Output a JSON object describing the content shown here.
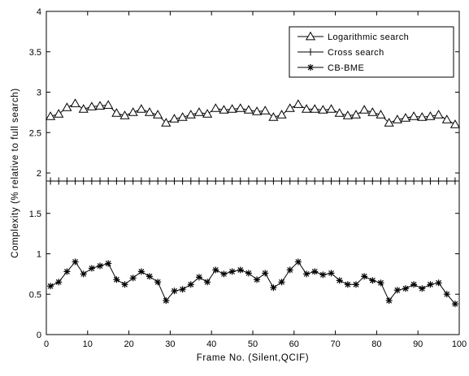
{
  "chart_data": {
    "type": "line",
    "title": "",
    "xlabel": "Frame No. (Silent,QCIF)",
    "ylabel": "Complexity (% relative to full search)",
    "xlim": [
      0,
      100
    ],
    "ylim": [
      0,
      4
    ],
    "xticks": [
      "0",
      "10",
      "20",
      "30",
      "40",
      "50",
      "60",
      "70",
      "80",
      "90",
      "100"
    ],
    "yticks": [
      "0",
      "0.5",
      "1",
      "1.5",
      "2",
      "2.5",
      "3",
      "3.5",
      "4"
    ],
    "grid": false,
    "legend_position": "top-right",
    "x": [
      1,
      3,
      5,
      7,
      9,
      11,
      13,
      15,
      17,
      19,
      21,
      23,
      25,
      27,
      29,
      31,
      33,
      35,
      37,
      39,
      41,
      43,
      45,
      47,
      49,
      51,
      53,
      55,
      57,
      59,
      61,
      63,
      65,
      67,
      69,
      71,
      73,
      75,
      77,
      79,
      81,
      83,
      85,
      87,
      89,
      91,
      93,
      95,
      97,
      99
    ],
    "series": [
      {
        "name": "Logarithmic search",
        "marker": "triangle",
        "values": [
          2.7,
          2.73,
          2.81,
          2.86,
          2.79,
          2.82,
          2.83,
          2.84,
          2.74,
          2.71,
          2.75,
          2.79,
          2.75,
          2.72,
          2.62,
          2.67,
          2.69,
          2.72,
          2.75,
          2.73,
          2.8,
          2.78,
          2.79,
          2.8,
          2.78,
          2.76,
          2.77,
          2.69,
          2.72,
          2.8,
          2.85,
          2.79,
          2.79,
          2.78,
          2.79,
          2.74,
          2.71,
          2.72,
          2.78,
          2.75,
          2.72,
          2.62,
          2.66,
          2.68,
          2.7,
          2.69,
          2.7,
          2.72,
          2.66,
          2.6
        ]
      },
      {
        "name": "Cross search",
        "marker": "plus",
        "values": [
          1.9,
          1.9,
          1.9,
          1.9,
          1.9,
          1.9,
          1.9,
          1.9,
          1.9,
          1.9,
          1.9,
          1.9,
          1.9,
          1.9,
          1.9,
          1.9,
          1.9,
          1.9,
          1.9,
          1.9,
          1.9,
          1.9,
          1.9,
          1.9,
          1.9,
          1.9,
          1.9,
          1.9,
          1.9,
          1.9,
          1.9,
          1.9,
          1.9,
          1.9,
          1.9,
          1.9,
          1.9,
          1.9,
          1.9,
          1.9,
          1.9,
          1.9,
          1.9,
          1.9,
          1.9,
          1.9,
          1.9,
          1.9,
          1.9,
          1.9
        ]
      },
      {
        "name": "CB-BME",
        "marker": "star",
        "values": [
          0.6,
          0.65,
          0.78,
          0.9,
          0.75,
          0.82,
          0.85,
          0.88,
          0.68,
          0.62,
          0.7,
          0.78,
          0.72,
          0.65,
          0.42,
          0.54,
          0.56,
          0.62,
          0.71,
          0.65,
          0.8,
          0.75,
          0.78,
          0.8,
          0.76,
          0.68,
          0.76,
          0.58,
          0.65,
          0.8,
          0.9,
          0.75,
          0.78,
          0.74,
          0.76,
          0.67,
          0.62,
          0.62,
          0.72,
          0.67,
          0.64,
          0.42,
          0.55,
          0.57,
          0.62,
          0.57,
          0.62,
          0.64,
          0.5,
          0.38
        ]
      }
    ]
  }
}
